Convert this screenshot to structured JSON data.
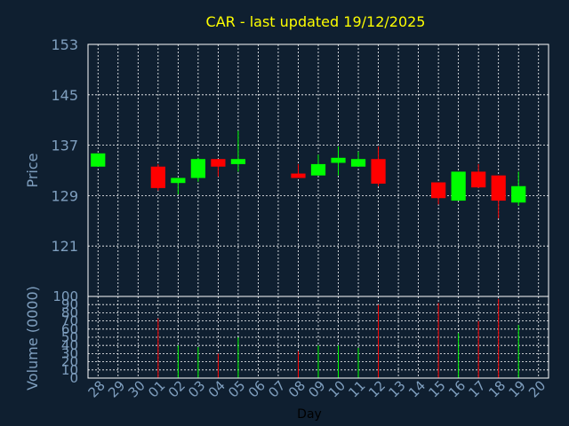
{
  "chart_data": {
    "type": "candlestick",
    "title": "CAR - last updated 19/12/2025",
    "ylabel_price": "Price",
    "ylabel_volume": "Volume (0000)",
    "xlabel": "Day",
    "price_ylim": [
      113,
      153
    ],
    "price_ticks": [
      "153",
      "145",
      "137",
      "129",
      "121"
    ],
    "volume_ylim": [
      0,
      100
    ],
    "volume_ticks": [
      "100",
      "90",
      "80",
      "70",
      "60",
      "50",
      "40",
      "30",
      "20",
      "10",
      "0"
    ],
    "days": [
      "28",
      "29",
      "30",
      "01",
      "02",
      "03",
      "04",
      "05",
      "06",
      "07",
      "08",
      "09",
      "10",
      "11",
      "12",
      "13",
      "14",
      "15",
      "16",
      "17",
      "18",
      "19",
      "20"
    ],
    "colors": {
      "up": "#00ff00",
      "down": "#ff0000",
      "background": "#0f1f30",
      "grid": "#ffffff",
      "axis_text": "#7f9fbf",
      "title": "#ffff00"
    },
    "candles": [
      {
        "day": "28",
        "open": 133.6,
        "high": 135.7,
        "low": 133.6,
        "close": 135.7,
        "volume": 0
      },
      {
        "day": "01",
        "open": 133.6,
        "high": 134.0,
        "low": 129.8,
        "close": 130.2,
        "volume": 73
      },
      {
        "day": "02",
        "open": 131.0,
        "high": 131.8,
        "low": 129.2,
        "close": 131.8,
        "volume": 40
      },
      {
        "day": "03",
        "open": 131.8,
        "high": 135.0,
        "low": 131.2,
        "close": 134.8,
        "volume": 38
      },
      {
        "day": "04",
        "open": 134.8,
        "high": 134.8,
        "low": 132.0,
        "close": 133.6,
        "volume": 30
      },
      {
        "day": "05",
        "open": 134.0,
        "high": 139.3,
        "low": 132.8,
        "close": 134.8,
        "volume": 50
      },
      {
        "day": "08",
        "open": 132.5,
        "high": 134.0,
        "low": 131.8,
        "close": 131.8,
        "volume": 33
      },
      {
        "day": "09",
        "open": 132.2,
        "high": 135.5,
        "low": 132.2,
        "close": 134.0,
        "volume": 40
      },
      {
        "day": "10",
        "open": 134.2,
        "high": 136.8,
        "low": 132.2,
        "close": 135.0,
        "volume": 40
      },
      {
        "day": "11",
        "open": 133.6,
        "high": 136.0,
        "low": 133.6,
        "close": 134.8,
        "volume": 37
      },
      {
        "day": "12",
        "open": 134.8,
        "high": 136.8,
        "low": 130.5,
        "close": 130.9,
        "volume": 90
      },
      {
        "day": "15",
        "open": 131.1,
        "high": 131.1,
        "low": 127.6,
        "close": 128.6,
        "volume": 92
      },
      {
        "day": "16",
        "open": 128.2,
        "high": 132.8,
        "low": 128.2,
        "close": 132.8,
        "volume": 55
      },
      {
        "day": "17",
        "open": 132.8,
        "high": 134.0,
        "low": 130.2,
        "close": 130.3,
        "volume": 70
      },
      {
        "day": "18",
        "open": 132.2,
        "high": 132.2,
        "low": 125.4,
        "close": 128.2,
        "volume": 97
      },
      {
        "day": "19",
        "open": 127.9,
        "high": 132.8,
        "low": 127.4,
        "close": 130.5,
        "volume": 65
      }
    ]
  }
}
